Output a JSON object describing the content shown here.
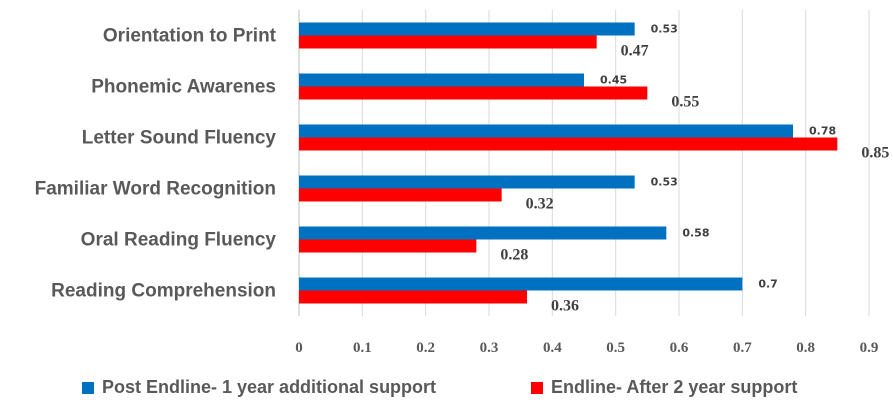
{
  "chart_data": {
    "type": "bar",
    "orientation": "horizontal",
    "categories": [
      "Orientation to Print",
      "Phonemic Awarenes",
      "Letter Sound Fluency",
      "Familiar Word Recognition",
      "Oral Reading Fluency",
      "Reading Comprehension"
    ],
    "series": [
      {
        "name": "Post Endline- 1 year additional support",
        "color": "#0070C0",
        "values": [
          0.53,
          0.45,
          0.78,
          0.53,
          0.58,
          0.7
        ]
      },
      {
        "name": "Endline- After 2 year support",
        "color": "#FF0000",
        "values": [
          0.47,
          0.55,
          0.85,
          0.32,
          0.28,
          0.36
        ]
      }
    ],
    "xlim": [
      0,
      0.9
    ],
    "x_ticks": [
      "0",
      "0.1",
      "0.2",
      "0.3",
      "0.4",
      "0.5",
      "0.6",
      "0.7",
      "0.8",
      "0.9"
    ],
    "grid": true,
    "legend_position": "bottom",
    "title": "",
    "xlabel": "",
    "ylabel": ""
  }
}
